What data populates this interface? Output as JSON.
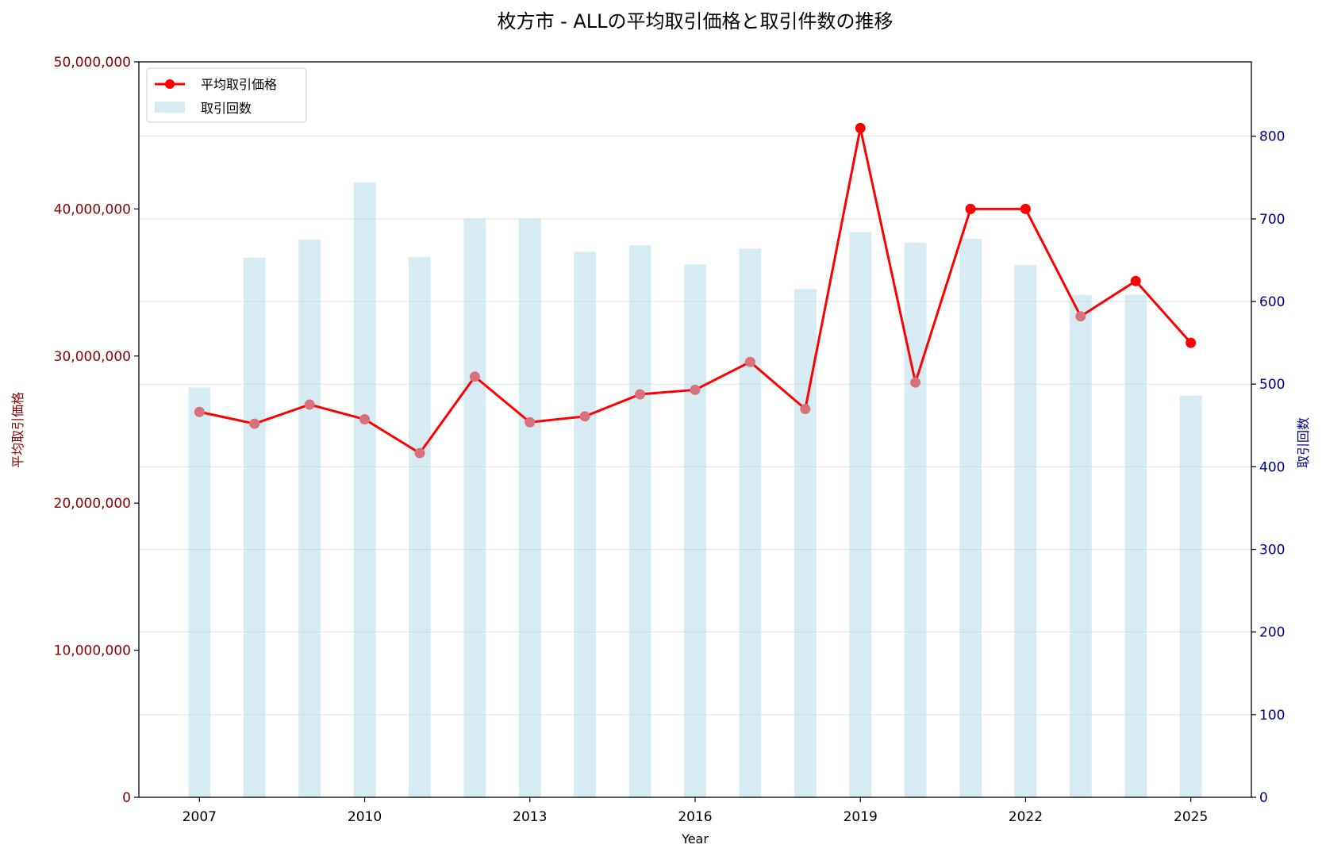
{
  "chart_data": {
    "type": "bar+line",
    "title": "枚方市 - ALLの平均取引価格と取引件数の推移",
    "xlabel": "Year",
    "ylabel_left": "平均取引価格",
    "ylabel_right": "取引回数",
    "x": [
      2007,
      2008,
      2009,
      2010,
      2011,
      2012,
      2013,
      2014,
      2015,
      2016,
      2017,
      2018,
      2019,
      2020,
      2021,
      2022,
      2023,
      2024,
      2025
    ],
    "x_ticks": [
      "2007",
      "2010",
      "2013",
      "2016",
      "2019",
      "2022",
      "2025"
    ],
    "xlim": [
      2005.9,
      2026.1
    ],
    "ylim_left": [
      0,
      50000000
    ],
    "ylim_right": [
      0,
      890
    ],
    "y_left_ticks": [
      "0",
      "10,000,000",
      "20,000,000",
      "30,000,000",
      "40,000,000",
      "50,000,000"
    ],
    "y_right_ticks": [
      "0",
      "100",
      "200",
      "300",
      "400",
      "500",
      "600",
      "700",
      "800"
    ],
    "series": [
      {
        "name": "平均取引価格",
        "kind": "line",
        "axis": "left",
        "values": [
          26200000,
          25400000,
          26700000,
          25700000,
          23400000,
          28600000,
          25500000,
          25900000,
          27400000,
          27700000,
          29600000,
          26400000,
          45500000,
          28200000,
          40000000,
          40000000,
          32700000,
          35100000,
          30900000
        ]
      },
      {
        "name": "取引回数",
        "kind": "bar",
        "axis": "right",
        "values": [
          496,
          653,
          675,
          744,
          654,
          700,
          700,
          660,
          668,
          645,
          664,
          615,
          684,
          671,
          676,
          644,
          608,
          608,
          486
        ]
      }
    ],
    "colors": {
      "line": "#ff0000",
      "marker_over_bar": "#d9717a",
      "bar": "#add8e6",
      "left_axis": "#8b0000",
      "right_axis": "#00008b"
    },
    "grid": true,
    "legend_position": "top-left"
  }
}
